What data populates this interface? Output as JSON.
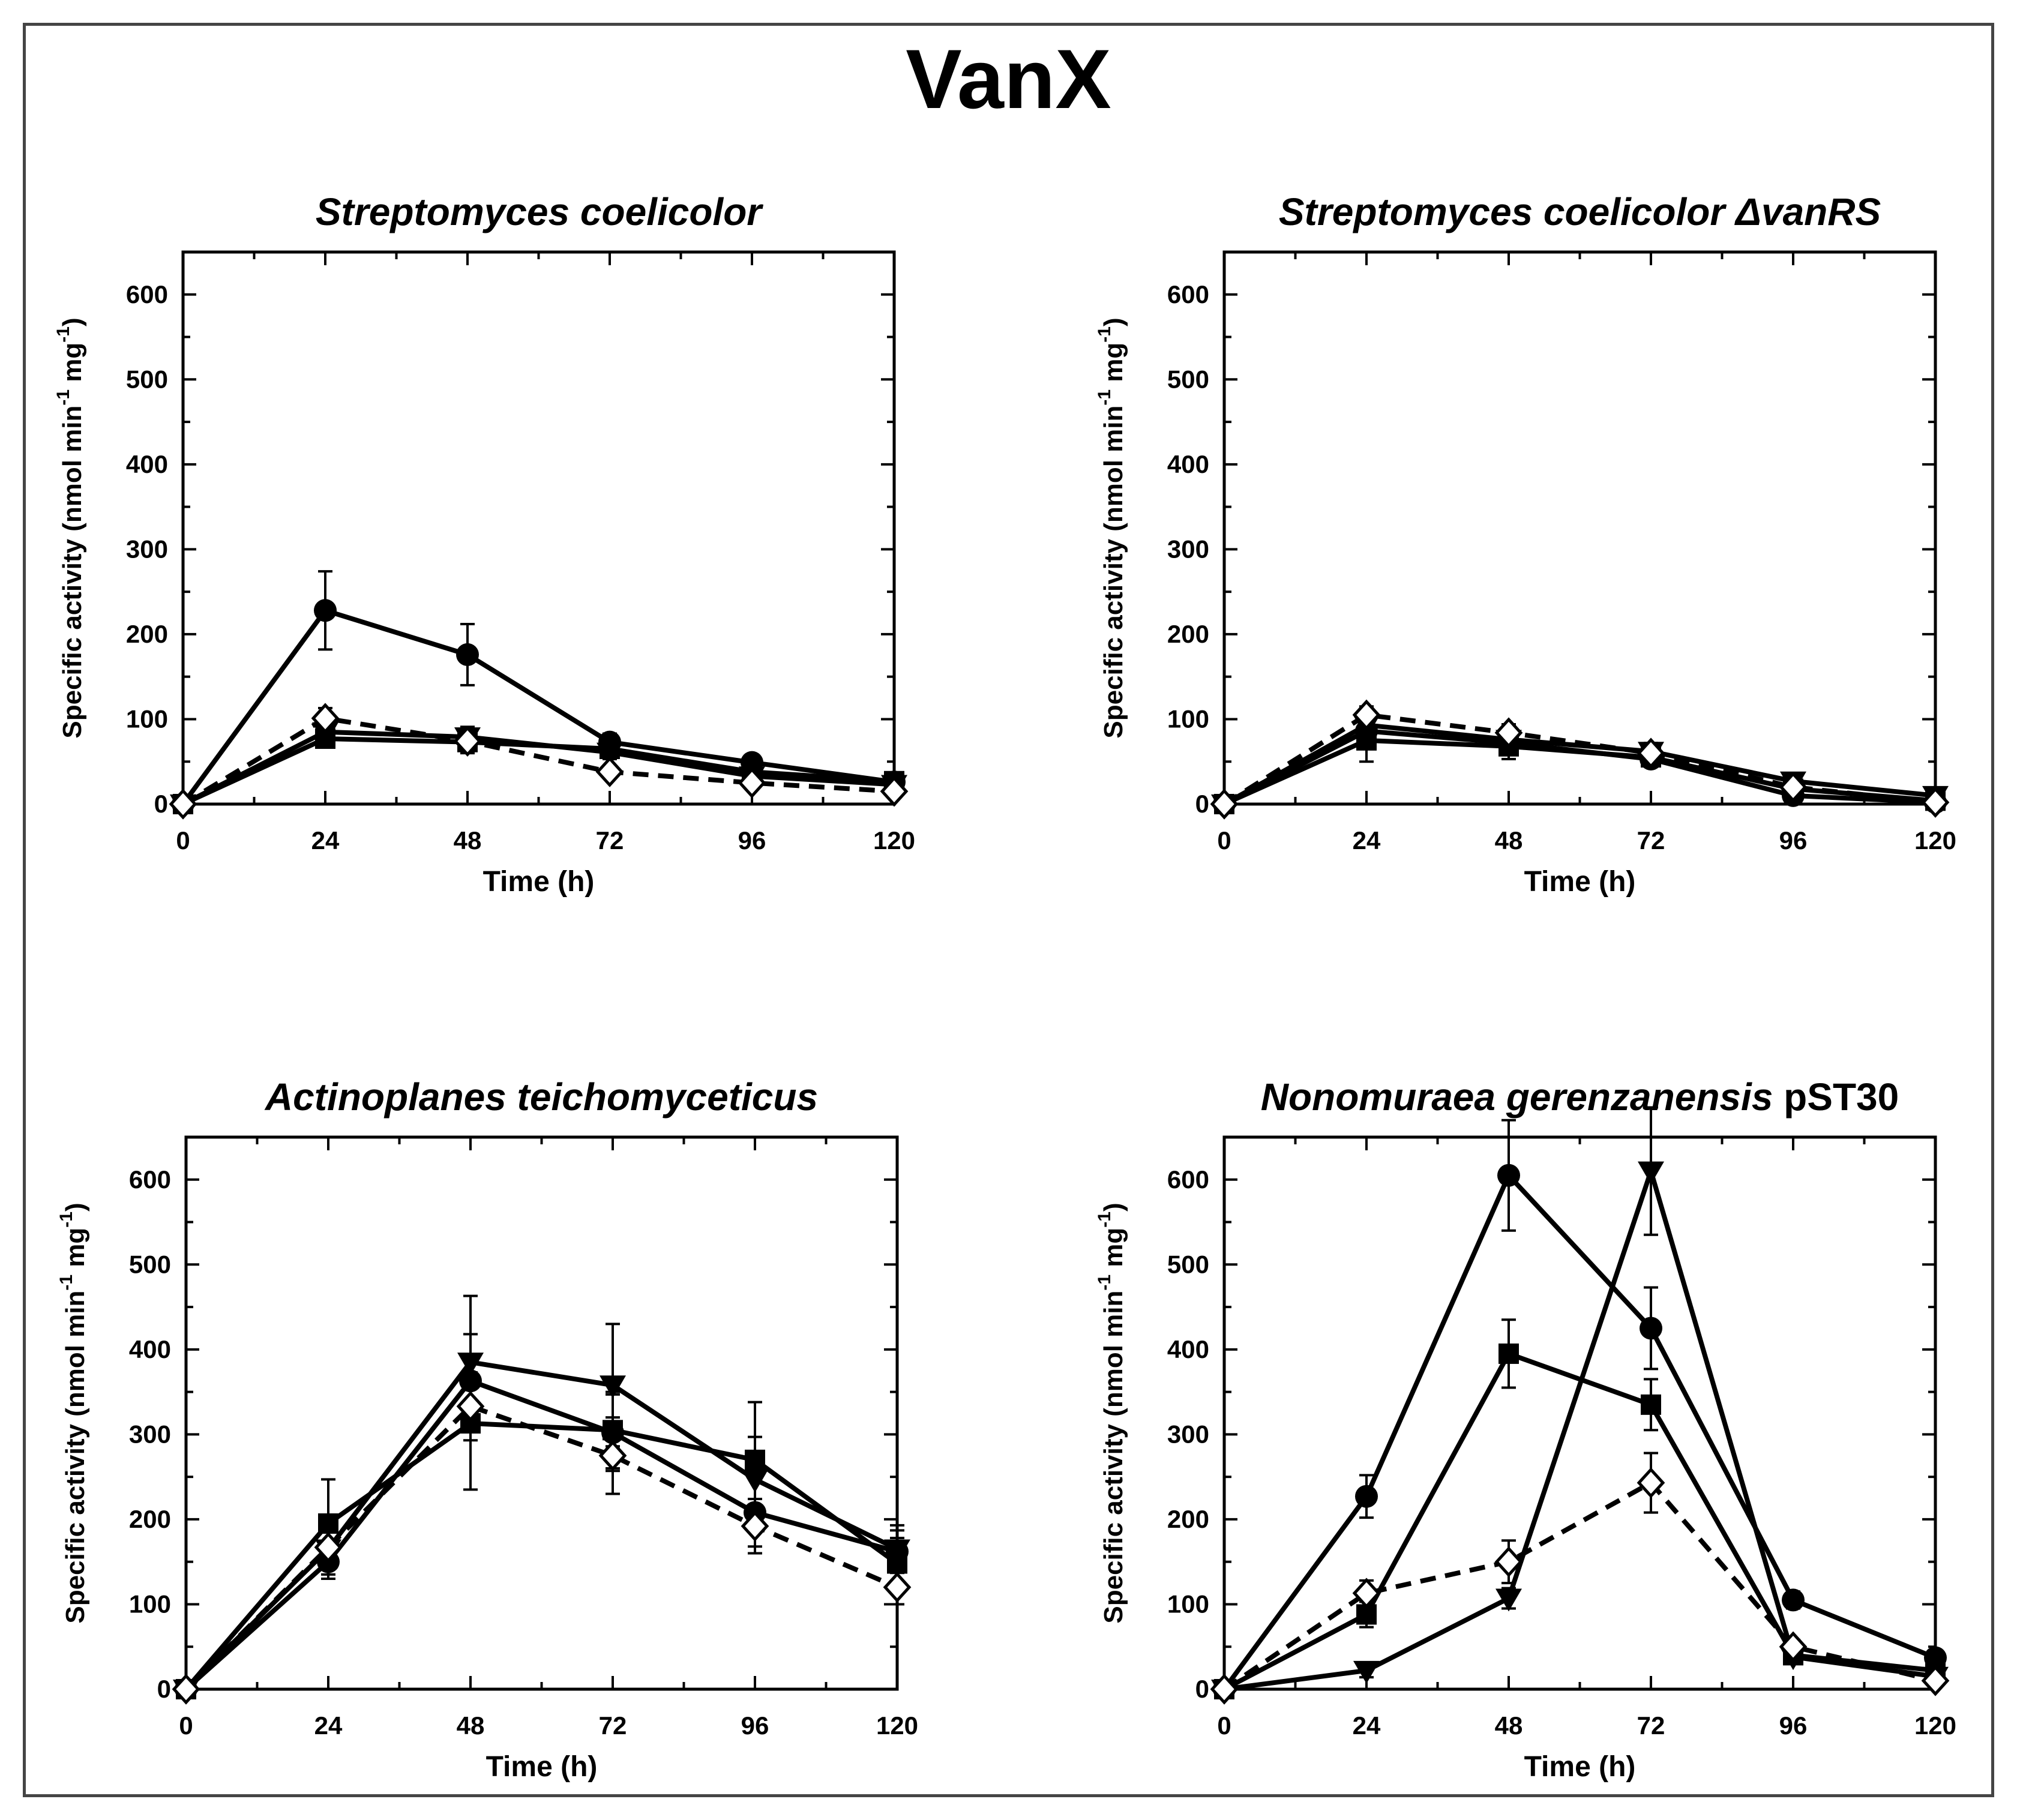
{
  "figure": {
    "title": "VanX"
  },
  "chart_data": [
    {
      "type": "line",
      "title": "Streptomyces coelicolor",
      "title_suffix": "",
      "xlabel": "Time (h)",
      "ylabel": "Specific activity (nmol min",
      "ylabel_unit": "mg",
      "ylabel_exp": "-1",
      "xlim": [
        0,
        120
      ],
      "ylim": [
        0,
        650
      ],
      "xticks": [
        0,
        24,
        48,
        72,
        96,
        120
      ],
      "yticks": [
        0,
        100,
        200,
        300,
        400,
        500,
        600
      ],
      "x": [
        0,
        24,
        48,
        72,
        96,
        120
      ],
      "series": [
        {
          "name": "filled circle",
          "marker": "circle",
          "dashed": false,
          "values": [
            0,
            228,
            176,
            73,
            49,
            26
          ],
          "errors": [
            0,
            46,
            36,
            10,
            8,
            5
          ]
        },
        {
          "name": "filled square",
          "marker": "square",
          "dashed": false,
          "values": [
            0,
            77,
            73,
            65,
            38,
            27
          ],
          "errors": [
            0,
            8,
            10,
            8,
            6,
            5
          ]
        },
        {
          "name": "filled triangle",
          "marker": "triangle",
          "dashed": false,
          "values": [
            0,
            85,
            79,
            61,
            33,
            23
          ],
          "errors": [
            0,
            10,
            12,
            8,
            6,
            5
          ]
        },
        {
          "name": "open diamond",
          "marker": "diamond",
          "dashed": true,
          "values": [
            0,
            101,
            74,
            38,
            25,
            15
          ],
          "errors": [
            0,
            12,
            14,
            6,
            5,
            4
          ]
        }
      ]
    },
    {
      "type": "line",
      "title": "Streptomyces coelicolor ",
      "title_suffix": "ΔvanRS",
      "xlabel": "Time (h)",
      "ylabel": "Specific activity (nmol min",
      "ylabel_unit": "mg",
      "ylabel_exp": "-1",
      "xlim": [
        0,
        120
      ],
      "ylim": [
        0,
        650
      ],
      "xticks": [
        0,
        24,
        48,
        72,
        96,
        120
      ],
      "yticks": [
        0,
        100,
        200,
        300,
        400,
        500,
        600
      ],
      "x": [
        0,
        24,
        48,
        72,
        96,
        120
      ],
      "series": [
        {
          "name": "filled circle",
          "marker": "circle",
          "dashed": false,
          "values": [
            0,
            86,
            72,
            53,
            10,
            2
          ],
          "errors": [
            0,
            12,
            10,
            8,
            5,
            3
          ]
        },
        {
          "name": "filled square",
          "marker": "square",
          "dashed": false,
          "values": [
            0,
            75,
            68,
            55,
            18,
            4
          ],
          "errors": [
            0,
            25,
            15,
            10,
            6,
            3
          ]
        },
        {
          "name": "filled triangle",
          "marker": "triangle",
          "dashed": false,
          "values": [
            0,
            93,
            76,
            62,
            27,
            10
          ],
          "errors": [
            0,
            12,
            12,
            10,
            6,
            4
          ]
        },
        {
          "name": "open diamond",
          "marker": "diamond",
          "dashed": true,
          "values": [
            0,
            105,
            84,
            60,
            20,
            2
          ],
          "errors": [
            0,
            10,
            10,
            8,
            6,
            3
          ]
        }
      ]
    },
    {
      "type": "line",
      "title": "Actinoplanes teichomyceticus",
      "title_suffix": "",
      "xlabel": "Time (h)",
      "ylabel": "Specific activity (nmol min",
      "ylabel_unit": "mg",
      "ylabel_exp": "-1",
      "xlim": [
        0,
        120
      ],
      "ylim": [
        0,
        650
      ],
      "xticks": [
        0,
        24,
        48,
        72,
        96,
        120
      ],
      "yticks": [
        0,
        100,
        200,
        300,
        400,
        500,
        600
      ],
      "x": [
        0,
        24,
        48,
        72,
        96,
        120
      ],
      "series": [
        {
          "name": "filled circle",
          "marker": "circle",
          "dashed": false,
          "values": [
            0,
            150,
            363,
            302,
            208,
            162
          ],
          "errors": [
            0,
            20,
            55,
            45,
            40,
            25
          ]
        },
        {
          "name": "filled square",
          "marker": "square",
          "dashed": false,
          "values": [
            0,
            195,
            313,
            305,
            270,
            148
          ],
          "errors": [
            0,
            52,
            78,
            45,
            68,
            30
          ]
        },
        {
          "name": "filled triangle",
          "marker": "triangle",
          "dashed": false,
          "values": [
            0,
            165,
            385,
            358,
            247,
            165
          ],
          "errors": [
            0,
            30,
            78,
            72,
            50,
            28
          ]
        },
        {
          "name": "open diamond",
          "marker": "diamond",
          "dashed": true,
          "values": [
            0,
            167,
            333,
            275,
            192,
            120
          ],
          "errors": [
            0,
            25,
            40,
            45,
            32,
            20
          ]
        }
      ]
    },
    {
      "type": "line",
      "title": "Nonomuraea gerenzanensis",
      "title_suffix": " pST30",
      "xlabel": "Time (h)",
      "ylabel": "Specific activity (nmol min",
      "ylabel_unit": "mg",
      "ylabel_exp": "-1",
      "xlim": [
        0,
        120
      ],
      "ylim": [
        0,
        650
      ],
      "xticks": [
        0,
        24,
        48,
        72,
        96,
        120
      ],
      "yticks": [
        0,
        100,
        200,
        300,
        400,
        500,
        600
      ],
      "x": [
        0,
        24,
        48,
        72,
        96,
        120
      ],
      "series": [
        {
          "name": "filled circle",
          "marker": "circle",
          "dashed": false,
          "values": [
            0,
            227,
            605,
            425,
            105,
            37
          ],
          "errors": [
            0,
            25,
            65,
            48,
            10,
            5
          ]
        },
        {
          "name": "filled square",
          "marker": "square",
          "dashed": false,
          "values": [
            0,
            88,
            395,
            335,
            40,
            22
          ],
          "errors": [
            0,
            15,
            40,
            30,
            6,
            5
          ]
        },
        {
          "name": "filled triangle",
          "marker": "triangle",
          "dashed": false,
          "values": [
            0,
            22,
            107,
            610,
            38,
            15
          ],
          "errors": [
            0,
            8,
            12,
            75,
            6,
            4
          ]
        },
        {
          "name": "open diamond",
          "marker": "diamond",
          "dashed": true,
          "values": [
            0,
            113,
            150,
            243,
            50,
            10
          ],
          "errors": [
            0,
            15,
            25,
            35,
            8,
            4
          ]
        }
      ]
    }
  ]
}
